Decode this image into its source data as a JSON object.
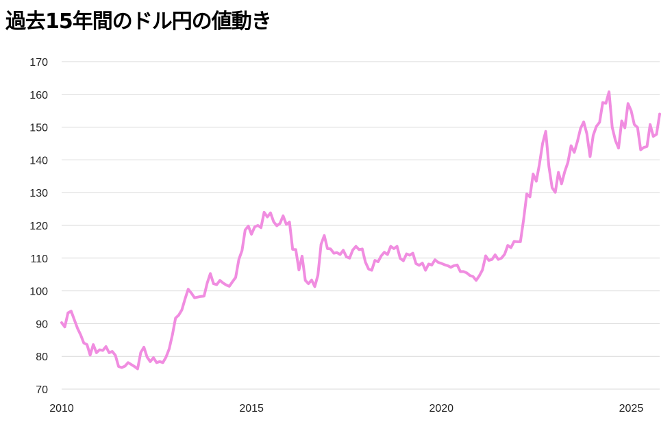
{
  "chart_data": {
    "type": "line",
    "title": "過去15年間のドル円の値動き",
    "xlabel": "",
    "ylabel": "",
    "xlim": [
      2010.0,
      2025.75
    ],
    "ylim": [
      70,
      170
    ],
    "yticks": [
      70,
      80,
      90,
      100,
      110,
      120,
      130,
      140,
      150,
      160,
      170
    ],
    "xticks": [
      2010,
      2015,
      2020,
      2025
    ],
    "grid": "horizontal",
    "legend": "none",
    "line_color": "#f08de0",
    "series": [
      {
        "x": [
          2010.0,
          2010.083,
          2010.167,
          2010.25,
          2010.333,
          2010.417,
          2010.5,
          2010.583,
          2010.667,
          2010.75,
          2010.833,
          2010.917,
          2011.0,
          2011.083,
          2011.167,
          2011.25,
          2011.333,
          2011.417,
          2011.5,
          2011.583,
          2011.667,
          2011.75,
          2011.833,
          2011.917,
          2012.0,
          2012.083,
          2012.167,
          2012.25,
          2012.333,
          2012.417,
          2012.5,
          2012.583,
          2012.667,
          2012.75,
          2012.833,
          2012.917,
          2013.0,
          2013.083,
          2013.167,
          2013.25,
          2013.333,
          2013.417,
          2013.5,
          2013.583,
          2013.667,
          2013.75,
          2013.833,
          2013.917,
          2014.0,
          2014.083,
          2014.167,
          2014.25,
          2014.333,
          2014.417,
          2014.5,
          2014.583,
          2014.667,
          2014.75,
          2014.833,
          2014.917,
          2015.0,
          2015.083,
          2015.167,
          2015.25,
          2015.333,
          2015.417,
          2015.5,
          2015.583,
          2015.667,
          2015.75,
          2015.833,
          2015.917,
          2016.0,
          2016.083,
          2016.167,
          2016.25,
          2016.333,
          2016.417,
          2016.5,
          2016.583,
          2016.667,
          2016.75,
          2016.833,
          2016.917,
          2017.0,
          2017.083,
          2017.167,
          2017.25,
          2017.333,
          2017.417,
          2017.5,
          2017.583,
          2017.667,
          2017.75,
          2017.833,
          2017.917,
          2018.0,
          2018.083,
          2018.167,
          2018.25,
          2018.333,
          2018.417,
          2018.5,
          2018.583,
          2018.667,
          2018.75,
          2018.833,
          2018.917,
          2019.0,
          2019.083,
          2019.167,
          2019.25,
          2019.333,
          2019.417,
          2019.5,
          2019.583,
          2019.667,
          2019.75,
          2019.833,
          2019.917,
          2020.0,
          2020.083,
          2020.167,
          2020.25,
          2020.333,
          2020.417,
          2020.5,
          2020.583,
          2020.667,
          2020.75,
          2020.833,
          2020.917,
          2021.0,
          2021.083,
          2021.167,
          2021.25,
          2021.333,
          2021.417,
          2021.5,
          2021.583,
          2021.667,
          2021.75,
          2021.833,
          2021.917,
          2022.0,
          2022.083,
          2022.167,
          2022.25,
          2022.333,
          2022.417,
          2022.5,
          2022.583,
          2022.667,
          2022.75,
          2022.833,
          2022.917,
          2023.0,
          2023.083,
          2023.167,
          2023.25,
          2023.333,
          2023.417,
          2023.5,
          2023.583,
          2023.667,
          2023.75,
          2023.833,
          2023.917,
          2024.0,
          2024.083,
          2024.167,
          2024.25,
          2024.333,
          2024.417,
          2024.5,
          2024.583,
          2024.667,
          2024.75,
          2024.833,
          2024.917,
          2025.0,
          2025.083,
          2025.167,
          2025.25,
          2025.333,
          2025.417,
          2025.5,
          2025.583,
          2025.667,
          2025.75
        ],
        "values": [
          90.3,
          89.0,
          93.3,
          93.8,
          91.2,
          88.6,
          86.6,
          84.1,
          83.6,
          80.4,
          83.6,
          81.1,
          82.0,
          81.8,
          83.0,
          81.1,
          81.5,
          80.3,
          76.9,
          76.6,
          77.0,
          78.1,
          77.5,
          76.9,
          76.2,
          81.2,
          82.8,
          79.8,
          78.4,
          79.6,
          78.1,
          78.4,
          78.1,
          79.8,
          82.3,
          86.6,
          91.7,
          92.6,
          94.2,
          97.5,
          100.5,
          99.3,
          97.9,
          98.1,
          98.3,
          98.4,
          102.4,
          105.3,
          102.2,
          101.9,
          103.2,
          102.4,
          101.8,
          101.4,
          102.8,
          104.1,
          109.6,
          112.3,
          118.6,
          119.8,
          117.3,
          119.5,
          120.0,
          119.3,
          124.0,
          122.6,
          123.8,
          121.1,
          119.9,
          120.6,
          122.9,
          120.3,
          121.0,
          112.7,
          112.6,
          106.4,
          110.6,
          103.2,
          102.2,
          103.3,
          101.3,
          104.8,
          114.2,
          116.9,
          112.9,
          112.8,
          111.5,
          111.7,
          111.1,
          112.4,
          110.4,
          110.0,
          112.5,
          113.6,
          112.6,
          112.8,
          108.8,
          106.7,
          106.3,
          109.3,
          108.9,
          110.7,
          111.8,
          111.1,
          113.6,
          112.9,
          113.6,
          109.9,
          109.2,
          111.3,
          110.9,
          111.5,
          108.3,
          107.8,
          108.5,
          106.3,
          108.2,
          107.9,
          109.5,
          108.7,
          108.4,
          108.0,
          107.7,
          107.2,
          107.7,
          107.9,
          105.9,
          105.9,
          105.5,
          104.7,
          104.4,
          103.2,
          104.6,
          106.4,
          110.7,
          109.3,
          109.6,
          111.0,
          109.6,
          110.0,
          111.2,
          113.9,
          113.2,
          115.1,
          115.0,
          115.0,
          121.8,
          129.6,
          128.7,
          135.7,
          133.5,
          138.7,
          145.0,
          148.7,
          138.0,
          131.5,
          130.1,
          136.2,
          132.7,
          136.4,
          139.2,
          144.3,
          142.3,
          145.6,
          149.6,
          151.6,
          148.0,
          141.0,
          147.5,
          150.2,
          151.5,
          157.5,
          157.3,
          160.8,
          150.0,
          146.0,
          143.6,
          151.9,
          149.8,
          157.2,
          155.0,
          150.8,
          149.9,
          143.1,
          143.8,
          144.1,
          150.8,
          147.2,
          147.8,
          154.0
        ]
      }
    ]
  }
}
